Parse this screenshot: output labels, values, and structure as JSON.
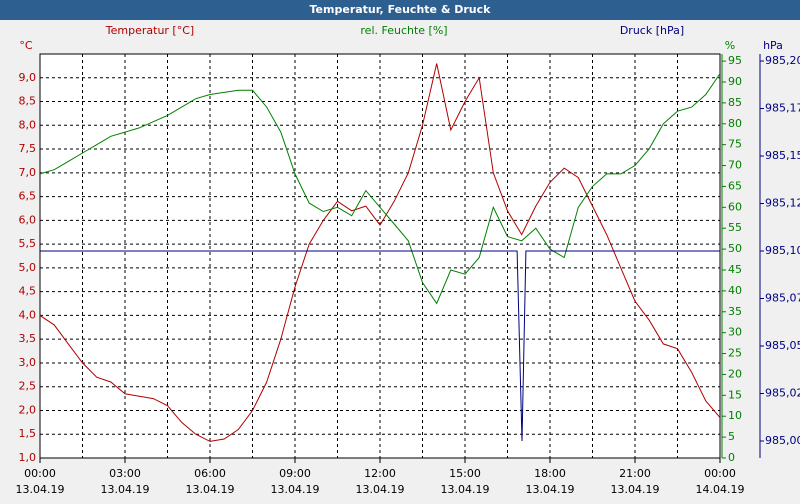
{
  "chart_data": {
    "type": "line",
    "title": "Temperatur, Feuchte & Druck",
    "header_labels": [
      "Temperatur [°C]",
      "rel. Feuchte [%]",
      "Druck [hPa]"
    ],
    "y_unit": "°C",
    "y2_unit": "%",
    "y3_unit": "hPa",
    "x": [
      0,
      0.5,
      1,
      1.5,
      2,
      2.5,
      3,
      3.5,
      4,
      4.5,
      5,
      5.5,
      6,
      6.5,
      7,
      7.5,
      8,
      8.5,
      9,
      9.5,
      10,
      10.5,
      11,
      11.5,
      12,
      12.5,
      13,
      13.5,
      14,
      14.5,
      15,
      15.5,
      16,
      16.5,
      17,
      17.5,
      18,
      18.5,
      19,
      19.5,
      20,
      20.5,
      21,
      21.5,
      22,
      22.5,
      23,
      23.5,
      24
    ],
    "xlim": [
      0,
      24
    ],
    "xticks": [
      {
        "value": 0,
        "label": "00:00"
      },
      {
        "value": 3,
        "label": "03:00"
      },
      {
        "value": 6,
        "label": "06:00"
      },
      {
        "value": 9,
        "label": "09:00"
      },
      {
        "value": 12,
        "label": "12:00"
      },
      {
        "value": 15,
        "label": "15:00"
      },
      {
        "value": 18,
        "label": "18:00"
      },
      {
        "value": 21,
        "label": "21:00"
      },
      {
        "value": 24,
        "label": "00:00"
      }
    ],
    "xtick_dates": [
      "13.04.19",
      "13.04.19",
      "13.04.19",
      "13.04.19",
      "13.04.19",
      "13.04.19",
      "13.04.19",
      "13.04.19",
      "14.04.19"
    ],
    "ylim": [
      1.0,
      9.5
    ],
    "yticks": [
      {
        "value": 1.0,
        "label": "1,0"
      },
      {
        "value": 1.5,
        "label": "1,5"
      },
      {
        "value": 2.0,
        "label": "2,0"
      },
      {
        "value": 2.5,
        "label": "2,5"
      },
      {
        "value": 3.0,
        "label": "3,0"
      },
      {
        "value": 3.5,
        "label": "3,5"
      },
      {
        "value": 4.0,
        "label": "4,0"
      },
      {
        "value": 4.5,
        "label": "4,5"
      },
      {
        "value": 5.0,
        "label": "5,0"
      },
      {
        "value": 5.5,
        "label": "5,5"
      },
      {
        "value": 6.0,
        "label": "6,0"
      },
      {
        "value": 6.5,
        "label": "6,5"
      },
      {
        "value": 7.0,
        "label": "7,0"
      },
      {
        "value": 7.5,
        "label": "7,5"
      },
      {
        "value": 8.0,
        "label": "8,0"
      },
      {
        "value": 8.5,
        "label": "8,5"
      },
      {
        "value": 9.0,
        "label": "9,0"
      }
    ],
    "y2lim": [
      0,
      96.7
    ],
    "y2ticks": [
      0,
      5,
      10,
      15,
      20,
      25,
      30,
      35,
      40,
      45,
      50,
      55,
      60,
      65,
      70,
      75,
      80,
      85,
      90,
      95
    ],
    "y3lim": [
      984.99105,
      985.2037
    ],
    "y3ticks": [
      {
        "value": 985.0,
        "label": "985,00"
      },
      {
        "value": 985.025,
        "label": "985,02"
      },
      {
        "value": 985.05,
        "label": "985,05"
      },
      {
        "value": 985.075,
        "label": "985,07"
      },
      {
        "value": 985.1,
        "label": "985,10"
      },
      {
        "value": 985.125,
        "label": "985,12"
      },
      {
        "value": 985.15,
        "label": "985,15"
      },
      {
        "value": 985.175,
        "label": "985,17"
      },
      {
        "value": 985.2,
        "label": "985,20"
      }
    ],
    "grid": true,
    "series": [
      {
        "name": "Temperatur [°C]",
        "color": "#b00000",
        "axis": "y",
        "values": [
          4.0,
          3.8,
          3.4,
          3.0,
          2.7,
          2.6,
          2.35,
          2.3,
          2.25,
          2.1,
          1.75,
          1.5,
          1.35,
          1.4,
          1.6,
          2.0,
          2.6,
          3.5,
          4.6,
          5.5,
          6.0,
          6.4,
          6.2,
          6.3,
          5.9,
          6.4,
          7.0,
          8.0,
          9.3,
          7.9,
          8.5,
          9.0,
          7.0,
          6.2,
          5.7,
          6.3,
          6.8,
          7.1,
          6.9,
          6.3,
          5.7,
          5.0,
          4.3,
          3.9,
          3.4,
          3.3,
          2.8,
          2.2,
          1.85
        ]
      },
      {
        "name": "rel. Feuchte [%]",
        "color": "#008000",
        "axis": "y2",
        "values": [
          68,
          69,
          71,
          73,
          75,
          77,
          78,
          79,
          80.5,
          82,
          84,
          86,
          87,
          87.5,
          88,
          88,
          84,
          78,
          68,
          61,
          59,
          60,
          58,
          64,
          60,
          56,
          52,
          42,
          37,
          45,
          44,
          48,
          60,
          53,
          52,
          55,
          50,
          48,
          60,
          65,
          68,
          68,
          70,
          74,
          80,
          83,
          84,
          87,
          92
        ]
      },
      {
        "name": "Druck [hPa]",
        "color": "#000080",
        "axis": "y3",
        "x": [
          0,
          16.84,
          17.01,
          17.15,
          24
        ],
        "values": [
          985.1,
          985.1,
          985.0,
          985.1,
          985.1
        ]
      }
    ]
  }
}
